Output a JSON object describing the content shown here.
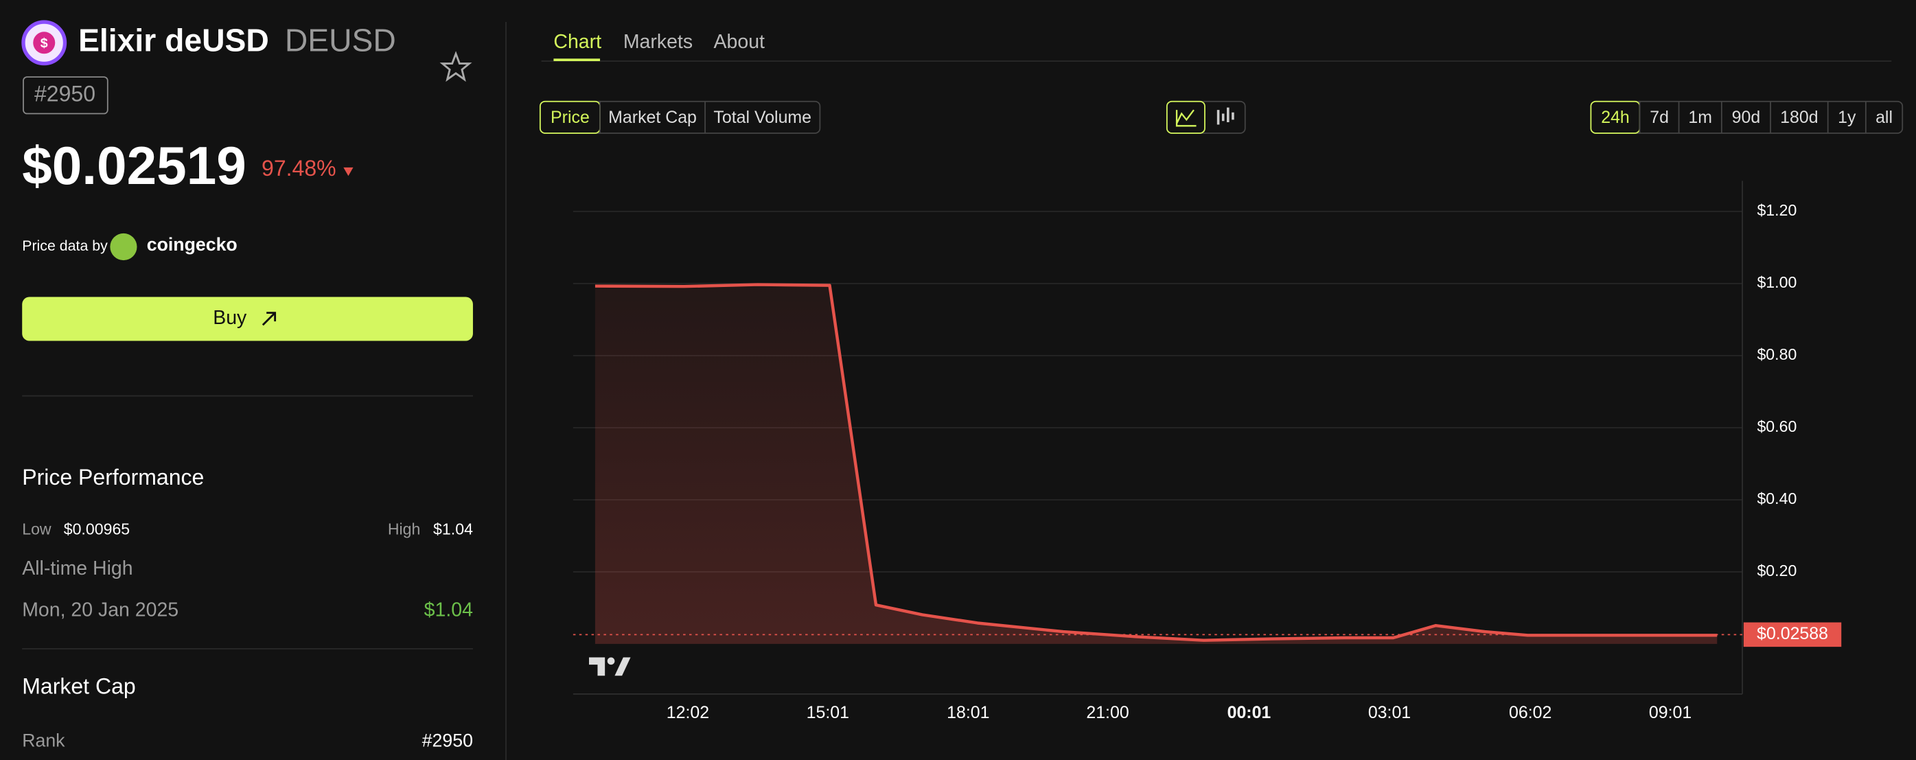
{
  "coin": {
    "name": "Elixir deUSD",
    "symbol": "DEUSD",
    "rank_badge": "#2950",
    "price": "$0.02519",
    "change": "97.48%",
    "price_source_label": "Price data by",
    "price_source": "coingecko",
    "buy": "Buy"
  },
  "tabs": [
    "Chart",
    "Markets",
    "About"
  ],
  "sidebar": {
    "performance_title": "Price Performance",
    "low_label": "Low",
    "low": "$0.00965",
    "high_label": "High",
    "high": "$1.04",
    "ath_label": "All-time High",
    "ath_date": "Mon, 20 Jan 2025",
    "ath": "$1.04",
    "market_cap_title": "Market Cap",
    "rank_label": "Rank",
    "rank": "#2950"
  },
  "chart_data": {
    "type": "line",
    "metrics": [
      "Price",
      "Market Cap",
      "Total Volume"
    ],
    "ranges": [
      "24h",
      "7d",
      "1m",
      "90d",
      "180d",
      "1y",
      "all"
    ],
    "x": [
      10.05,
      11.95,
      13.52,
      15.06,
      16.05,
      17.04,
      18.22,
      20.05,
      21.62,
      23.05,
      24.49,
      26.05,
      27.1,
      28.01,
      29.06,
      29.97,
      32.06,
      34.02
    ],
    "series": [
      {
        "color": "#e5534b",
        "values": [
          0.993,
          0.992,
          0.997,
          0.995,
          0.108,
          0.081,
          0.058,
          0.034,
          0.02,
          0.01,
          0.014,
          0.017,
          0.017,
          0.051,
          0.034,
          0.024,
          0.024,
          0.024
        ]
      }
    ],
    "xlim": [
      9.58,
      34.56
    ],
    "xticks": [
      {
        "value": 12.03,
        "label": "12:02"
      },
      {
        "value": 15.02,
        "label": "15:01"
      },
      {
        "value": 18.02,
        "label": "18:01"
      },
      {
        "value": 21,
        "label": "21:00"
      },
      {
        "value": 24.02,
        "label": "00:01"
      },
      {
        "value": 27.02,
        "label": "03:01"
      },
      {
        "value": 30.03,
        "label": "06:02"
      },
      {
        "value": 33.02,
        "label": "09:01"
      }
    ],
    "ylim": [
      -0.139,
      1.285
    ],
    "yticks": [
      {
        "value": 0.2,
        "label": "$0.20"
      },
      {
        "value": 0.4,
        "label": "$0.40"
      },
      {
        "value": 0.6,
        "label": "$0.60"
      },
      {
        "value": 0.8,
        "label": "$0.80"
      },
      {
        "value": 1,
        "label": "$1.00"
      },
      {
        "value": 1.2,
        "label": "$1.20"
      }
    ],
    "current_price": {
      "value": 0.02588,
      "label": "$0.02588"
    },
    "grid": true
  }
}
